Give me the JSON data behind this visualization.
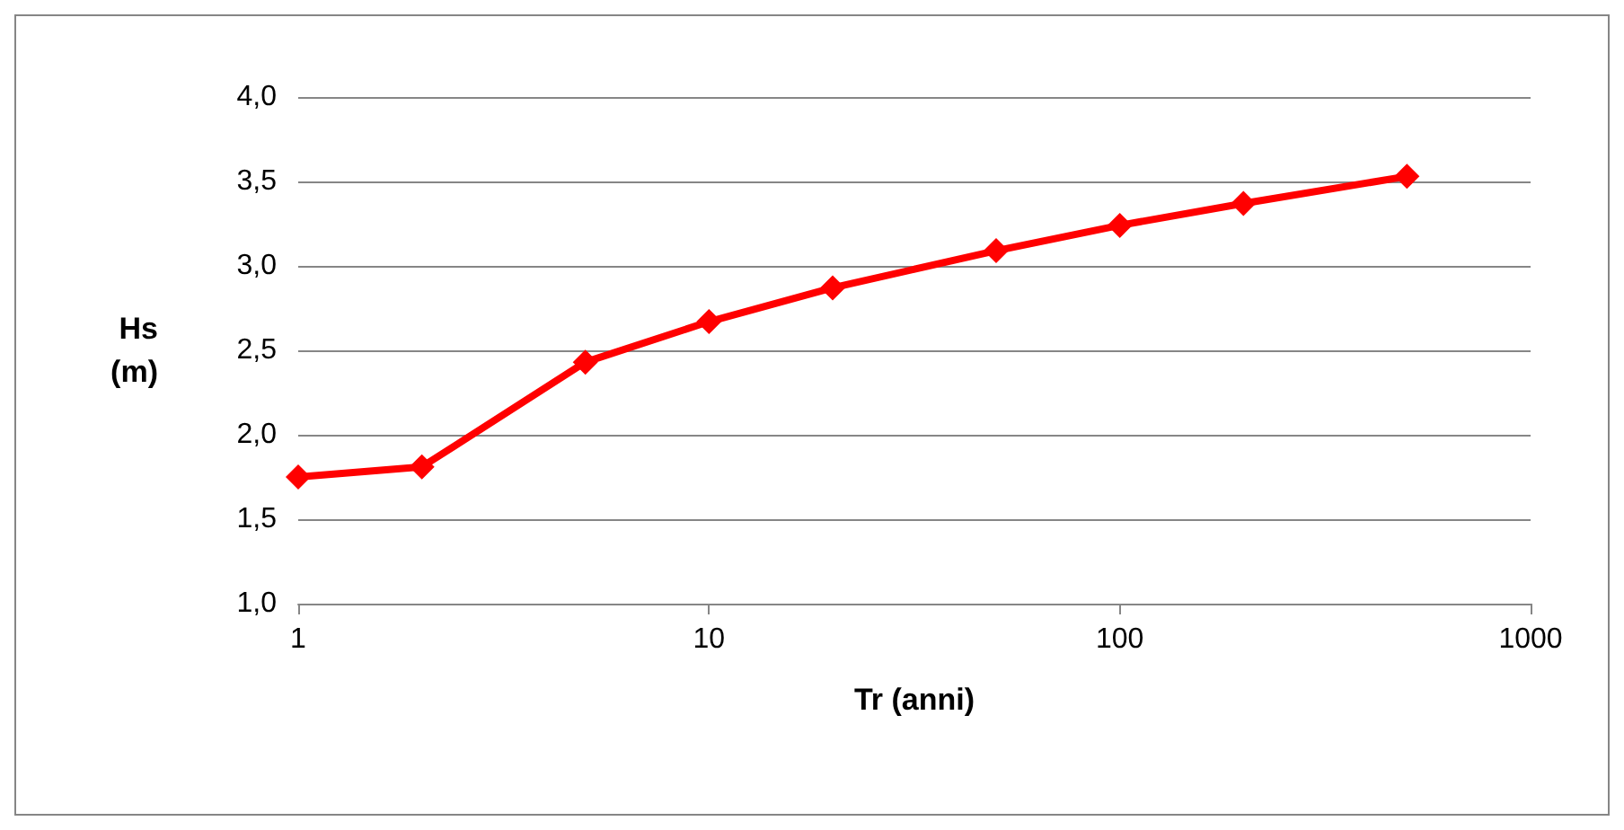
{
  "chart_data": {
    "type": "line",
    "xlabel": "Tr (anni)",
    "ylabel": "Hs\n(m)",
    "x": [
      1,
      2,
      5,
      10,
      20,
      50,
      100,
      200,
      500
    ],
    "series": [
      {
        "color": "#ff0000",
        "values": [
          1.75,
          1.81,
          2.43,
          2.67,
          2.87,
          3.09,
          3.24,
          3.37,
          3.53
        ]
      }
    ],
    "log": "x",
    "xlim": [
      1,
      1000
    ],
    "xticks": [
      1,
      10,
      100,
      1000
    ],
    "ylim": [
      1,
      4
    ],
    "yticks": [
      {
        "value": 1,
        "label": "1,0"
      },
      {
        "value": 1.5,
        "label": "1,5"
      },
      {
        "value": 2,
        "label": "2,0"
      },
      {
        "value": 2.5,
        "label": "2,5"
      },
      {
        "value": 3,
        "label": "3,0"
      },
      {
        "value": 3.5,
        "label": "3,5"
      },
      {
        "value": 4,
        "label": "4,0"
      }
    ],
    "grid": "y",
    "marker": "diamond",
    "line_style": "solid"
  }
}
